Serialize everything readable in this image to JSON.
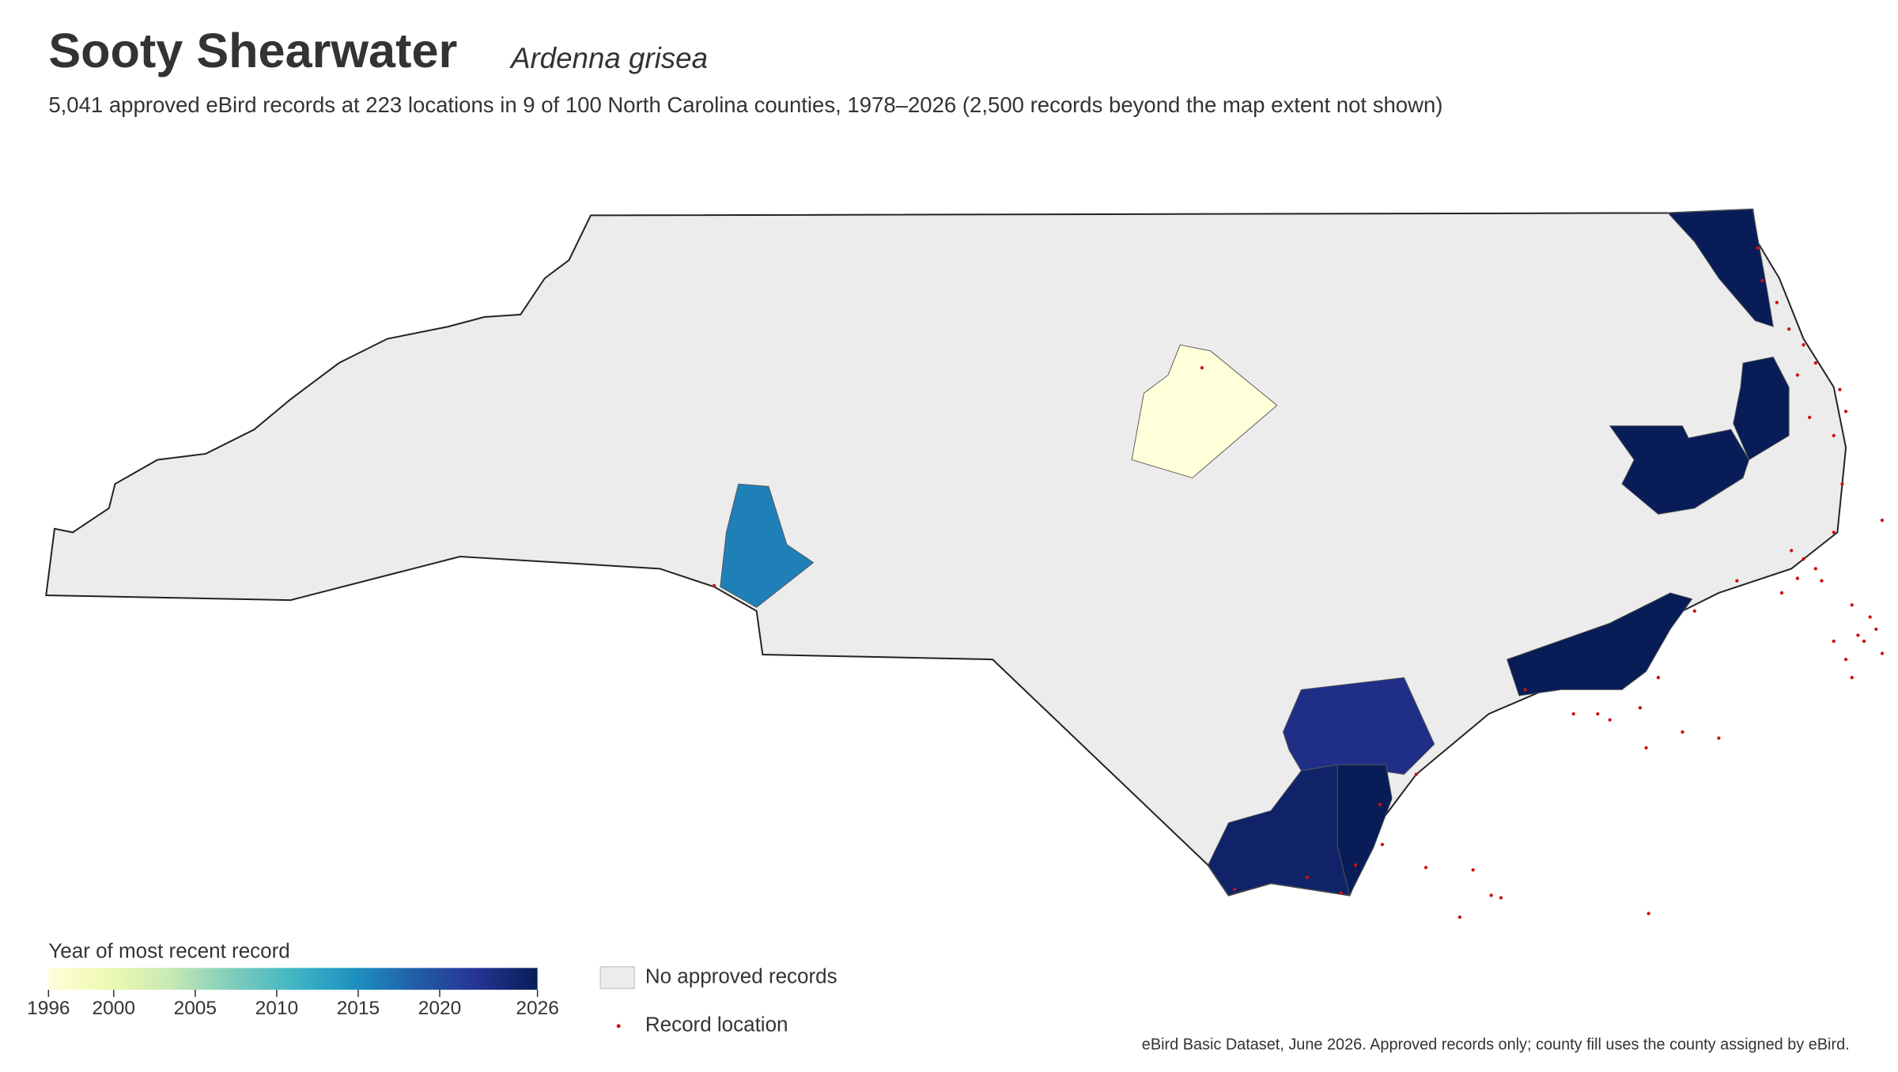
{
  "header": {
    "title": "Sooty Shearwater",
    "species": "Ardenna grisea",
    "description": "5,041 approved eBird records at 223 locations in 9 of 100 North Carolina counties, 1978–2026 (2,500 records beyond the map extent not shown)"
  },
  "legend": {
    "title": "Year of most recent record",
    "range": [
      1996,
      2026
    ],
    "ticks": [
      1996,
      2000,
      2005,
      2010,
      2015,
      2020,
      2026
    ],
    "colorscale": [
      "#ffffd9",
      "#edf8b1",
      "#c7e9b4",
      "#7fcdbb",
      "#41b6c4",
      "#1d91c0",
      "#225ea8",
      "#253494",
      "#081d58"
    ],
    "no_records_label": "No approved records",
    "no_records_color": "#ececec",
    "record_label": "Record location",
    "record_color": "#cc1111"
  },
  "shaded_counties": [
    {
      "year": 1996
    },
    {
      "year": 2016
    },
    {
      "year": 2026
    },
    {
      "year": 2026
    },
    {
      "year": 2026
    },
    {
      "year": 2026
    },
    {
      "year": 2023
    },
    {
      "year": 2026
    },
    {
      "year": 2025
    }
  ],
  "footer": "eBird Basic Dataset, June 2026. Approved records only; county fill uses the county assigned by eBird."
}
